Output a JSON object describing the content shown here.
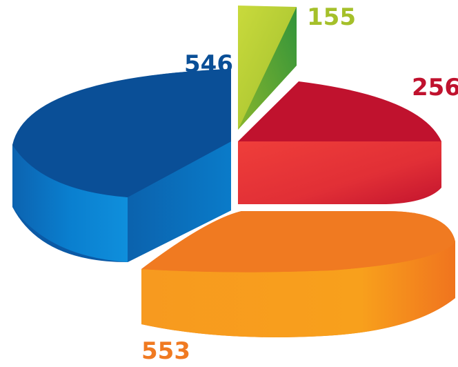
{
  "chart_data": {
    "type": "pie",
    "style": "3d-exploded",
    "title": "",
    "slices": [
      {
        "label": "546",
        "value": 546,
        "color": "#0a4f97"
      },
      {
        "label": "155",
        "value": 155,
        "color": "#a5c02a"
      },
      {
        "label": "256",
        "value": 256,
        "color": "#c0122e"
      },
      {
        "label": "553",
        "value": 553,
        "color": "#f07a21"
      }
    ]
  }
}
